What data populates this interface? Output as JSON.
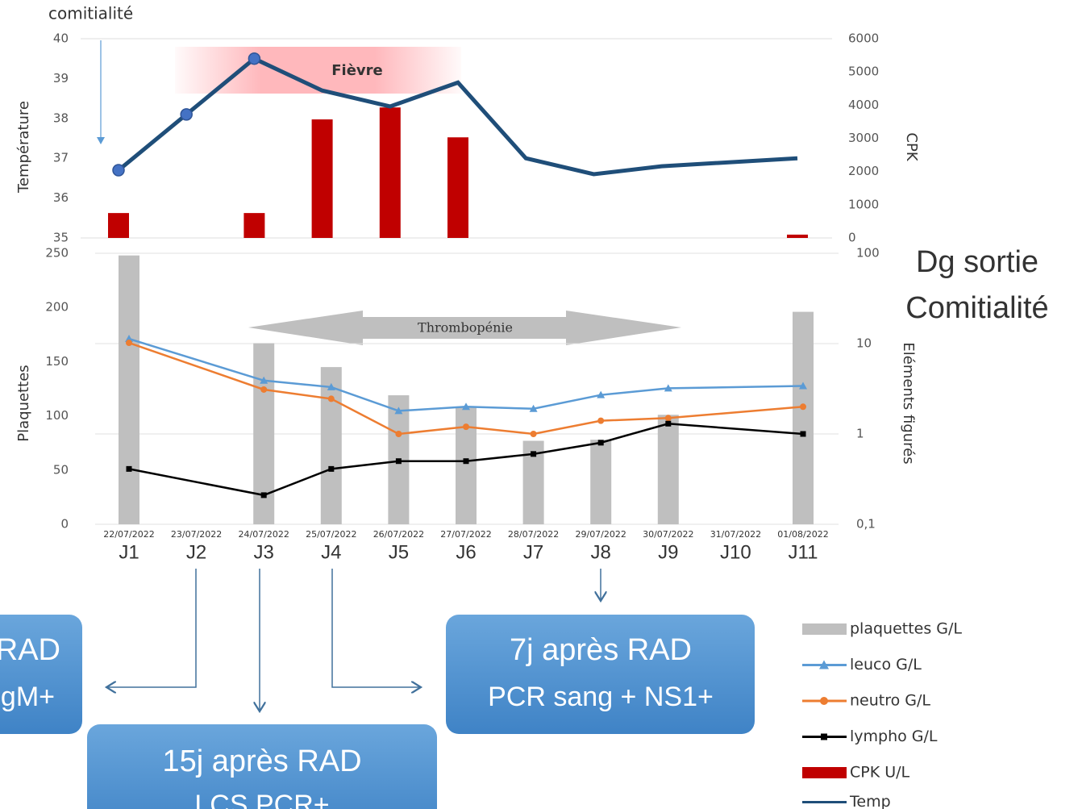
{
  "chart_data": [
    {
      "type": "combo",
      "ylabel": "Température",
      "y2label": "CPK",
      "ylim": [
        35,
        40
      ],
      "yticks": [
        35,
        36,
        37,
        38,
        39,
        40
      ],
      "y2lim": [
        0,
        6000
      ],
      "y2ticks": [
        0,
        1000,
        2000,
        3000,
        4000,
        5000,
        6000
      ],
      "categories": [
        "J1",
        "J2",
        "J3",
        "J4",
        "J5",
        "J6",
        "J7",
        "J8",
        "J9",
        "J10",
        "J11"
      ],
      "series": [
        {
          "name": "CPK U/L",
          "type": "bar",
          "axis": "y2",
          "color": "#c00000",
          "x": [
            "J1",
            "J3",
            "J4",
            "J5",
            "J6",
            "J11"
          ],
          "values": [
            750,
            750,
            3570,
            3930,
            3030,
            100
          ]
        },
        {
          "name": "Temp",
          "type": "line",
          "color": "#1f4e79",
          "x": [
            "J1",
            "J2",
            "J3",
            "J4",
            "J5",
            "J6",
            "J7",
            "J8",
            "J9",
            "J11"
          ],
          "values": [
            36.7,
            38.1,
            39.5,
            38.7,
            38.3,
            38.9,
            37.0,
            36.6,
            36.8,
            37.0
          ]
        }
      ],
      "annotations": {
        "top_left": "comitialité",
        "band": "Fièvre"
      }
    },
    {
      "type": "combo",
      "ylabel": "Plaquettes",
      "y2label": "Eléments figurés",
      "ylim": [
        0,
        250
      ],
      "yticks": [
        0,
        50,
        100,
        150,
        200,
        250
      ],
      "y2lim": [
        0.1,
        100
      ],
      "y2scale": "log",
      "y2ticks": [
        {
          "value": 0.1,
          "label": "0,1"
        },
        1,
        10,
        100
      ],
      "grid": true,
      "categories": [
        "J1",
        "J2",
        "J3",
        "J4",
        "J5",
        "J6",
        "J7",
        "J8",
        "J9",
        "J10",
        "J11"
      ],
      "dates": [
        "22/07/2022",
        "23/07/2022",
        "24/07/2022",
        "25/07/2022",
        "26/07/2022",
        "27/07/2022",
        "28/07/2022",
        "29/07/2022",
        "30/07/2022",
        "31/07/2022",
        "01/08/2022"
      ],
      "series": [
        {
          "name": "plaquettes G/L",
          "type": "bar",
          "color": "#bfbfbf",
          "x": [
            "J1",
            "J3",
            "J4",
            "J5",
            "J6",
            "J7",
            "J8",
            "J9",
            "J11"
          ],
          "values": [
            248,
            167,
            145,
            119,
            108,
            77,
            78,
            101,
            196
          ]
        },
        {
          "name": "leuco G/L",
          "type": "line",
          "axis": "y2",
          "color": "#5b9bd5",
          "marker": "triangle",
          "x": [
            "J1",
            "J3",
            "J4",
            "J5",
            "J6",
            "J7",
            "J8",
            "J9",
            "J11"
          ],
          "values": [
            11.3,
            3.9,
            3.3,
            1.8,
            2.0,
            1.9,
            2.7,
            3.2,
            3.4
          ]
        },
        {
          "name": "neutro G/L",
          "type": "line",
          "axis": "y2",
          "color": "#ed7d31",
          "marker": "circle",
          "x": [
            "J1",
            "J3",
            "J4",
            "J5",
            "J6",
            "J7",
            "J8",
            "J9",
            "J11"
          ],
          "values": [
            10.2,
            3.1,
            2.45,
            1.0,
            1.2,
            1.0,
            1.4,
            1.5,
            2.0
          ]
        },
        {
          "name": "lympho G/L",
          "type": "line",
          "axis": "y2",
          "color": "#000000",
          "marker": "square",
          "x": [
            "J1",
            "J3",
            "J4",
            "J5",
            "J6",
            "J7",
            "J8",
            "J9",
            "J11"
          ],
          "values": [
            0.41,
            0.21,
            0.41,
            0.5,
            0.5,
            0.6,
            0.8,
            1.3,
            1.0
          ]
        }
      ],
      "annotations": {
        "arrow": "Thrombopénie"
      }
    }
  ],
  "side": {
    "line1": "Dg sortie",
    "line2": "Comitialité"
  },
  "boxes": [
    {
      "title": "RAD",
      "text": "gM+"
    },
    {
      "title": "15j après RAD",
      "text": "LCS PCR+"
    },
    {
      "title": "7j après RAD",
      "text": "PCR sang + NS1+"
    }
  ]
}
